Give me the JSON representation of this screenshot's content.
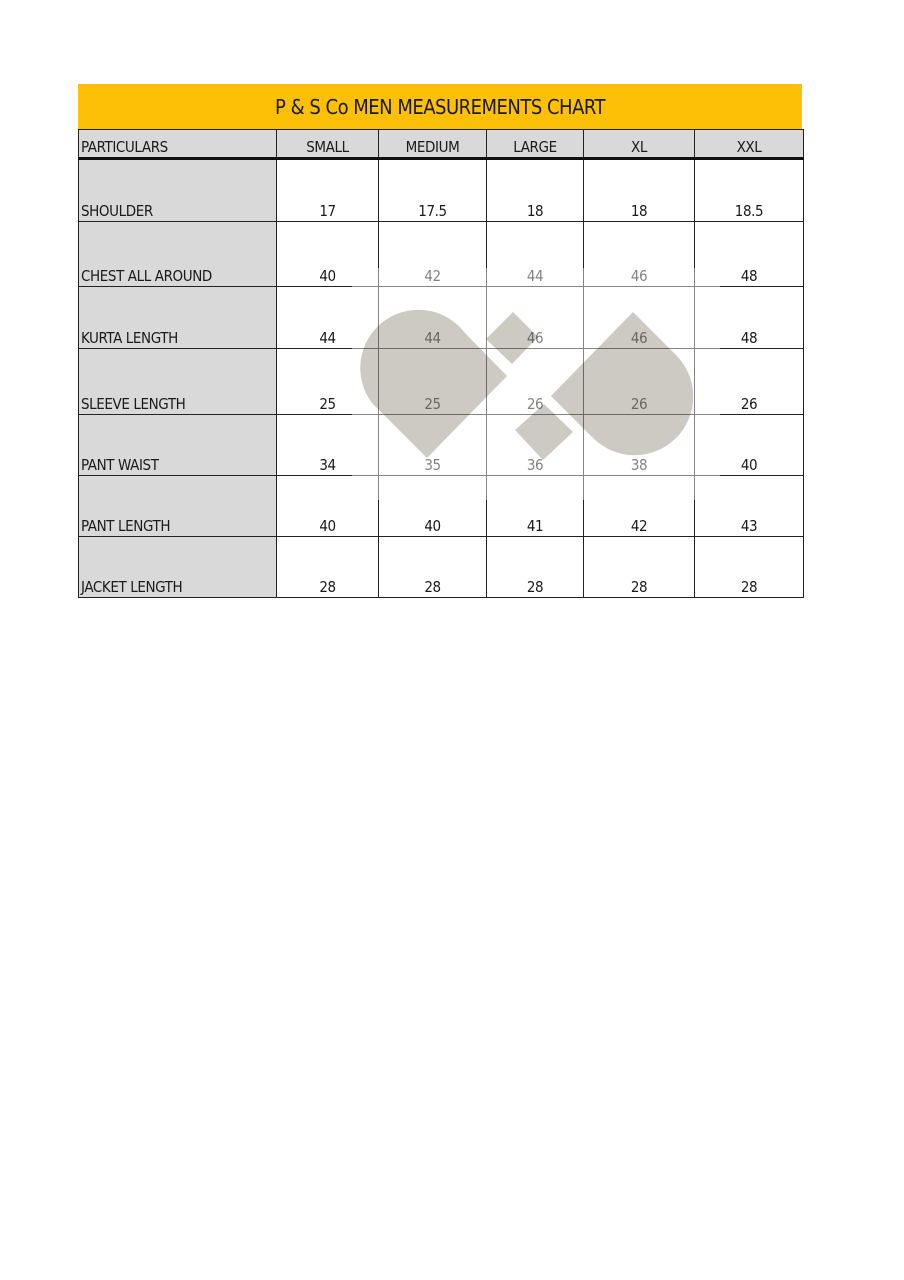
{
  "title": "P & S Co MEN MEASUREMENTS CHART",
  "columns": [
    "PARTICULARS",
    "SMALL",
    "MEDIUM",
    "LARGE",
    "XL",
    "XXL"
  ],
  "rows": [
    {
      "label": "SHOULDER",
      "values": [
        "17",
        "17.5",
        "18",
        "18",
        "18.5"
      ]
    },
    {
      "label": "CHEST ALL AROUND",
      "values": [
        "40",
        "42",
        "44",
        "46",
        "48"
      ]
    },
    {
      "label": "KURTA LENGTH",
      "values": [
        "44",
        "44",
        "46",
        "46",
        "48"
      ]
    },
    {
      "label": "SLEEVE LENGTH",
      "values": [
        "25",
        "25",
        "26",
        "26",
        "26"
      ]
    },
    {
      "label": "PANT WAIST",
      "values": [
        "34",
        "35",
        "36",
        "38",
        "40"
      ]
    },
    {
      "label": "PANT LENGTH",
      "values": [
        "40",
        "40",
        "41",
        "42",
        "43"
      ]
    },
    {
      "label": "JACKET LENGTH",
      "values": [
        "28",
        "28",
        "28",
        "28",
        "28"
      ]
    }
  ],
  "colors": {
    "title_bar": "#fdc006",
    "label_fill": "#d9d9d9",
    "watermark": "#cdcac4"
  },
  "watermark_icon": "brand-logo-watermark"
}
